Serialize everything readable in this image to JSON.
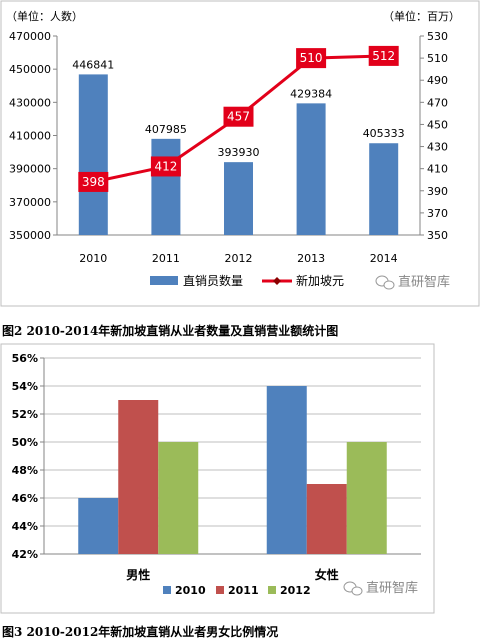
{
  "captions": {
    "figure2": "图2  2010-2014年新加坡直销从业者数量及直销营业额统计图",
    "figure3": "图3  2010-2012年新加坡直销从业者男女比例情况"
  },
  "watermark": "直研智库",
  "chart_data": [
    {
      "type": "bar+line",
      "title": "",
      "categories": [
        "2010",
        "2011",
        "2012",
        "2013",
        "2014"
      ],
      "left_axis": {
        "unit_label": "（单位：人数）",
        "range": [
          350000,
          470000
        ],
        "ticks": [
          350000,
          370000,
          390000,
          410000,
          430000,
          450000,
          470000
        ]
      },
      "right_axis": {
        "unit_label": "（单位：百万）",
        "range": [
          350,
          530
        ],
        "ticks": [
          350,
          370,
          390,
          410,
          430,
          450,
          470,
          490,
          510,
          530
        ]
      },
      "series": [
        {
          "name": "直销员数量",
          "type": "bar",
          "axis": "left",
          "color": "#4f81bd",
          "values": [
            446841,
            407985,
            393930,
            429384,
            405333
          ]
        },
        {
          "name": "新加坡元",
          "type": "line",
          "axis": "right",
          "color": "#e2001a",
          "values": [
            398,
            412,
            457,
            510,
            512
          ]
        }
      ],
      "legend": "bottom"
    },
    {
      "type": "bar",
      "title": "",
      "categories": [
        "男性",
        "女性"
      ],
      "ylim": [
        0.42,
        0.56
      ],
      "yticks": [
        "42%",
        "44%",
        "46%",
        "48%",
        "50%",
        "52%",
        "54%",
        "56%"
      ],
      "series": [
        {
          "name": "2010",
          "color": "#4f81bd",
          "values": [
            0.46,
            0.54
          ]
        },
        {
          "name": "2011",
          "color": "#c0504d",
          "values": [
            0.53,
            0.47
          ]
        },
        {
          "name": "2012",
          "color": "#9bbb59",
          "values": [
            0.5,
            0.5
          ]
        }
      ],
      "legend": "bottom",
      "grid": true
    }
  ]
}
